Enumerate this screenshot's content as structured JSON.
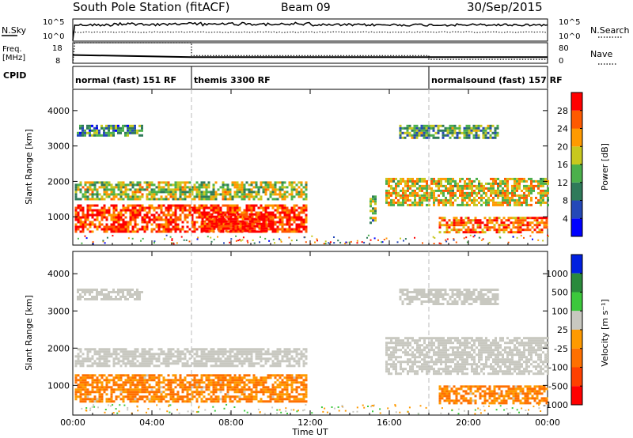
{
  "header": {
    "station": "South Pole Station (fitACF)",
    "beam": "Beam 09",
    "date": "30/Sep/2015"
  },
  "noise_panel": {
    "left_label": "N.Sky",
    "right_label": "N.Search",
    "left_ticks": [
      "10^5",
      "10^0"
    ],
    "right_ticks": [
      "10^5",
      "10^0"
    ]
  },
  "freq_panel": {
    "left_label_1": "Freq.",
    "left_label_2": "[MHz]",
    "right_label": "Nave",
    "left_ticks": [
      "18",
      "8"
    ],
    "right_ticks": [
      "80",
      "0"
    ],
    "freq_mhz": [
      {
        "t": 0.0,
        "v": 12
      },
      {
        "t": 0.1,
        "v": 12
      },
      {
        "t": 6.0,
        "v": 11
      },
      {
        "t": 24.0,
        "v": 11
      }
    ],
    "nave": [
      {
        "t": 0.0,
        "v": 0
      },
      {
        "t": 0.1,
        "v": 80
      },
      {
        "t": 6.0,
        "v": 80
      },
      {
        "t": 6.0,
        "v": 30
      },
      {
        "t": 18.0,
        "v": 30
      },
      {
        "t": 18.0,
        "v": 15
      },
      {
        "t": 24.0,
        "v": 15
      }
    ]
  },
  "cpid": {
    "label": "CPID",
    "modes": [
      {
        "start": 0,
        "end": 6,
        "name": "normal (fast) 151 RF"
      },
      {
        "start": 6,
        "end": 18,
        "name": "themis 3300 RF"
      },
      {
        "start": 18,
        "end": 24,
        "name": "normalsound (fast) 157 RF"
      }
    ]
  },
  "chart_data": [
    {
      "type": "heatmap",
      "title": "",
      "xlabel": "Time UT",
      "ylabel": "Slant Range [km]",
      "xlim": [
        0,
        24
      ],
      "ylim": [
        200,
        4600
      ],
      "x_ticks": [
        "00:00",
        "04:00",
        "08:00",
        "12:00",
        "16:00",
        "20:00",
        "00:00"
      ],
      "y_ticks": [
        1000,
        2000,
        3000,
        4000
      ],
      "colorbar": {
        "label": "Power [dB]",
        "ticks": [
          4,
          8,
          12,
          16,
          20,
          24,
          28
        ],
        "range": [
          0,
          30
        ],
        "colors": [
          "#0000ff",
          "#2448b8",
          "#2f7a5a",
          "#4bb04b",
          "#c8c81e",
          "#ff9a00",
          "#ff5a00",
          "#ff0000"
        ]
      },
      "bands": [
        {
          "t0": 0.1,
          "t1": 11.8,
          "r0": 550,
          "r1": 1350,
          "level": 26
        },
        {
          "t0": 6.5,
          "t1": 10.0,
          "r0": 600,
          "r1": 1100,
          "level": 29
        },
        {
          "t0": 0.1,
          "t1": 11.8,
          "r0": 1500,
          "r1": 2000,
          "level": 16
        },
        {
          "t0": 0.2,
          "t1": 3.5,
          "r0": 3300,
          "r1": 3600,
          "level": 10
        },
        {
          "t0": 15.0,
          "t1": 15.3,
          "r0": 800,
          "r1": 1600,
          "level": 14
        },
        {
          "t0": 15.8,
          "t1": 24.0,
          "r0": 1300,
          "r1": 2100,
          "level": 18
        },
        {
          "t0": 16.5,
          "t1": 21.5,
          "r0": 3200,
          "r1": 3600,
          "level": 12
        },
        {
          "t0": 18.5,
          "t1": 24.0,
          "r0": 550,
          "r1": 1000,
          "level": 24
        }
      ]
    },
    {
      "type": "heatmap",
      "title": "",
      "xlabel": "Time UT",
      "ylabel": "Slant Range [km]",
      "xlim": [
        0,
        24
      ],
      "ylim": [
        200,
        4600
      ],
      "x_ticks": [
        "00:00",
        "04:00",
        "08:00",
        "12:00",
        "16:00",
        "20:00",
        "00:00"
      ],
      "y_ticks": [
        1000,
        2000,
        3000,
        4000
      ],
      "colorbar": {
        "label": "Velocity [m s⁻¹]",
        "ticks": [
          1000,
          500,
          100,
          25,
          -25,
          -100,
          -500,
          -1000
        ],
        "colors": [
          "#0020e0",
          "#2a8a3c",
          "#3cc83c",
          "#c8c8c0",
          "#ff9a00",
          "#ff7000",
          "#ff4000",
          "#ff0000"
        ]
      },
      "bands": [
        {
          "t0": 0.1,
          "t1": 11.8,
          "r0": 550,
          "r1": 1300,
          "level": -300
        },
        {
          "t0": 0.1,
          "t1": 11.8,
          "r0": 1500,
          "r1": 2000,
          "level": 0
        },
        {
          "t0": 0.2,
          "t1": 3.5,
          "r0": 3300,
          "r1": 3600,
          "level": 0
        },
        {
          "t0": 15.8,
          "t1": 24.0,
          "r0": 1300,
          "r1": 2300,
          "level": 0
        },
        {
          "t0": 16.5,
          "t1": 21.5,
          "r0": 3200,
          "r1": 3600,
          "level": 0
        },
        {
          "t0": 18.5,
          "t1": 24.0,
          "r0": 550,
          "r1": 1000,
          "level": -300
        }
      ]
    }
  ]
}
